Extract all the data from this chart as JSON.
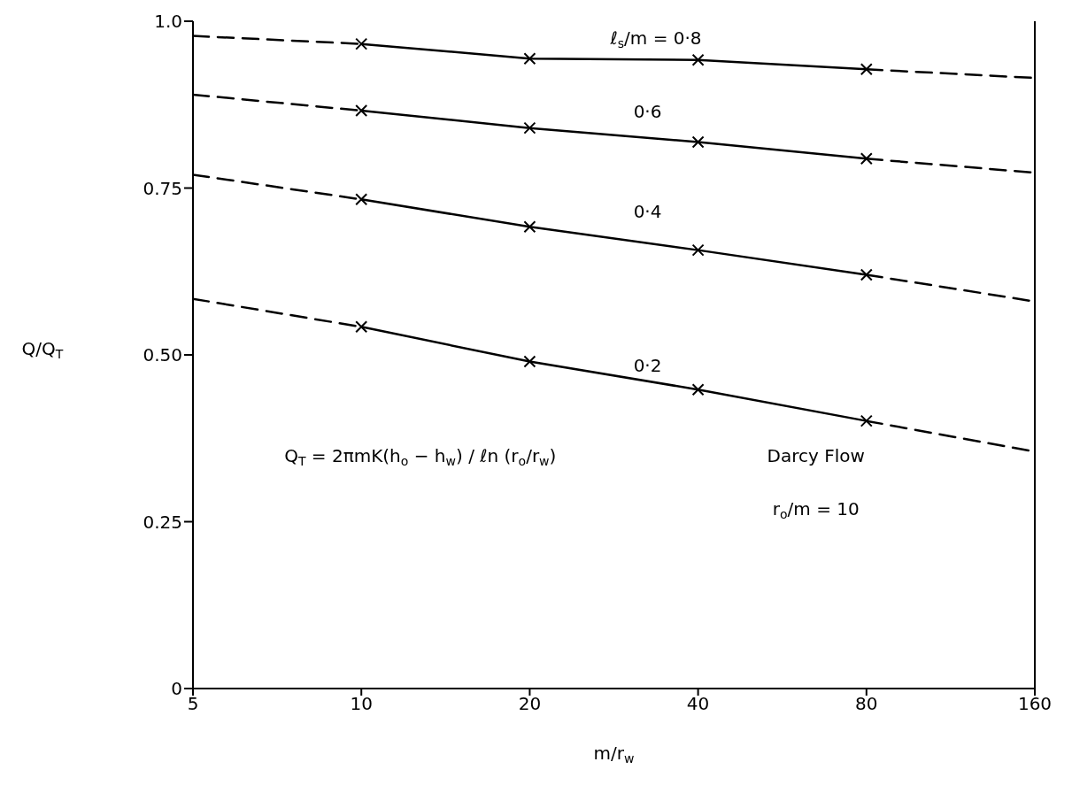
{
  "chart_data": {
    "type": "line",
    "xlabel": "m/r$_{w}$",
    "ylabel": "Q/Q$_{T}$",
    "log": "x",
    "xlim": [
      5,
      160
    ],
    "xticks": [
      5,
      10,
      20,
      40,
      80,
      160
    ],
    "ylim": [
      0,
      1.0
    ],
    "yticks": [
      0,
      0.25,
      {
        "value": 0.5,
        "label": "0.50"
      },
      0.75,
      {
        "value": 1.0,
        "label": "1.0"
      }
    ],
    "series": [
      {
        "color": "#000000",
        "line_style": "solid",
        "marker": "cross",
        "x": [
          10,
          20,
          40,
          80
        ],
        "values": [
          0.966,
          0.944,
          0.942,
          0.928
        ]
      },
      {
        "color": "#000000",
        "line_style": "dashed",
        "marker": "none",
        "x": [
          5,
          10,
          40,
          80,
          160
        ],
        "values": [
          0.978,
          0.966,
          null,
          0.928,
          0.915
        ]
      },
      {
        "color": "#000000",
        "line_style": "solid",
        "marker": "cross",
        "x": [
          10,
          20,
          40,
          80
        ],
        "values": [
          0.866,
          0.84,
          0.819,
          0.794
        ]
      },
      {
        "color": "#000000",
        "line_style": "dashed",
        "marker": "none",
        "x": [
          5,
          10,
          40,
          80,
          160
        ],
        "values": [
          0.89,
          0.866,
          null,
          0.794,
          0.773
        ]
      },
      {
        "color": "#000000",
        "line_style": "solid",
        "marker": "cross",
        "x": [
          10,
          20,
          40,
          80
        ],
        "values": [
          0.733,
          0.692,
          0.657,
          0.62
        ]
      },
      {
        "color": "#000000",
        "line_style": "dashed",
        "marker": "none",
        "x": [
          5,
          10,
          40,
          80,
          160
        ],
        "values": [
          0.77,
          0.733,
          null,
          0.62,
          0.58
        ]
      },
      {
        "color": "#000000",
        "line_style": "solid",
        "marker": "cross",
        "x": [
          10,
          20,
          40,
          80
        ],
        "values": [
          0.542,
          0.49,
          0.448,
          0.401
        ]
      },
      {
        "color": "#000000",
        "line_style": "dashed",
        "marker": "none",
        "x": [
          5,
          10,
          40,
          80,
          160
        ],
        "values": [
          0.584,
          0.542,
          null,
          0.401,
          0.355
        ]
      }
    ],
    "annotations": [
      "ℓ$_{s}$/m = 0·8",
      "0·6",
      "0·4",
      "0·2",
      "Q$_{T}$ = 2πmK(h$_{o}$ − h$_{w}$) / ℓn (r$_{o}$/r$_{w}$)",
      "Darcy Flow",
      "r$_{o}$/m = 10"
    ]
  }
}
